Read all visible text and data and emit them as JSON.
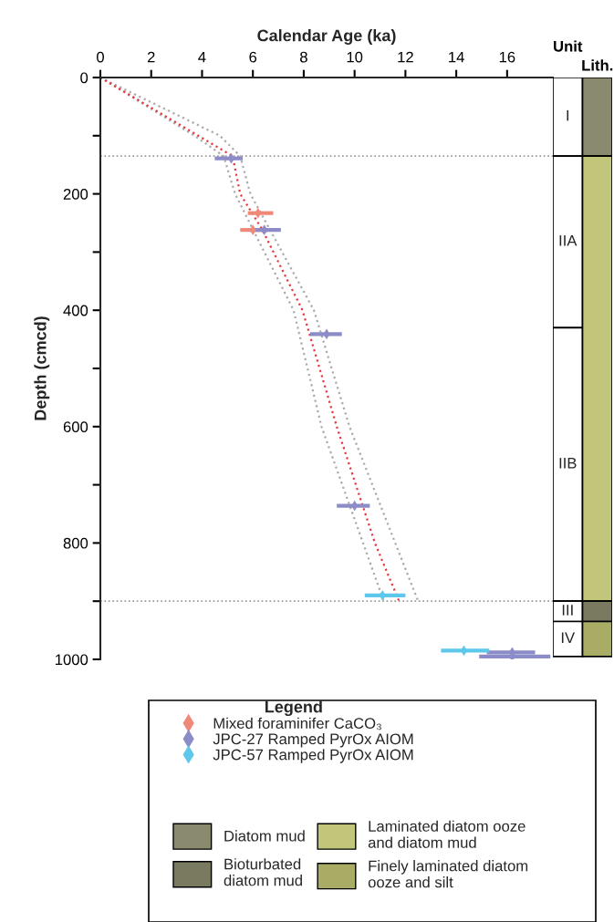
{
  "chart_data": [
    {
      "type": "scatter",
      "xlabel": "Calendar Age (ka)",
      "ylabel": "Depth (cmcd)",
      "legend_title": "Legend",
      "legend": "bottom",
      "xlim": [
        0,
        17.8
      ],
      "xticks": [
        0,
        2,
        4,
        6,
        8,
        10,
        12,
        14,
        16
      ],
      "ylim": [
        1000,
        0
      ],
      "yticks": [
        0,
        {
          "value": 100,
          "label": null
        },
        200,
        {
          "value": 300,
          "label": null
        },
        400,
        {
          "value": 500,
          "label": null
        },
        600,
        {
          "value": 700,
          "label": null
        },
        800,
        {
          "value": 900,
          "label": null
        },
        1000
      ],
      "grid": false,
      "ref_lines": [
        {
          "axis": "y",
          "value": 135,
          "color": "#999999",
          "line_style": "dotted"
        },
        {
          "axis": "y",
          "value": 900,
          "color": "#999999",
          "line_style": "dotted"
        }
      ],
      "series": [
        {
          "type": "line",
          "color": "#aaaaaa",
          "line_style": "dotted",
          "marker": "none",
          "x": [
            0,
            3.7,
            4.85,
            5.3,
            7.6,
            8.7,
            11.15
          ],
          "values": [
            0,
            100,
            135,
            200,
            400,
            600,
            900
          ]
        },
        {
          "type": "line",
          "color": "#aaaaaa",
          "line_style": "dotted",
          "marker": "none",
          "x": [
            0,
            4.7,
            5.5,
            5.9,
            8.4,
            9.8,
            12.5
          ],
          "values": [
            0,
            100,
            135,
            200,
            400,
            600,
            900
          ]
        },
        {
          "type": "line",
          "color": "#e8383d",
          "line_style": "dotted",
          "marker": "none",
          "x": [
            0,
            5.2,
            5.5,
            6.35,
            7.95,
            9.3,
            10.8,
            11.75
          ],
          "values": [
            0,
            135,
            200,
            260,
            400,
            600,
            800,
            900
          ]
        },
        {
          "type": "scatter",
          "name": "Mixed foraminifer CaCO₃",
          "color": "#f08878",
          "marker": "diamond",
          "x": [
            6.2,
            6.0
          ],
          "values": [
            233,
            262
          ],
          "xerrors": [
            [
              5.8,
              6.8
            ],
            [
              5.5,
              6.6
            ]
          ]
        },
        {
          "type": "scatter",
          "name": "JPC-27 Ramped PyrOx AIOM",
          "color": "#8c8cc8",
          "marker": "diamond",
          "x": [
            5.15,
            6.45,
            8.9,
            10.0,
            16.2,
            16.2
          ],
          "values": [
            139,
            262,
            441,
            736,
            988,
            995
          ],
          "xerrors": [
            [
              4.5,
              5.6
            ],
            [
              5.9,
              7.1
            ],
            [
              8.25,
              9.5
            ],
            [
              9.3,
              10.6
            ],
            [
              15.2,
              17.1
            ],
            [
              14.9,
              17.7
            ]
          ]
        },
        {
          "type": "scatter",
          "name": "JPC-57 Ramped PyrOx AIOM",
          "color": "#5ec8ec",
          "marker": "diamond",
          "x": [
            11.1,
            14.3
          ],
          "values": [
            890,
            985
          ],
          "xerrors": [
            [
              10.4,
              12.0
            ],
            [
              13.4,
              15.3
            ]
          ]
        }
      ]
    },
    {
      "type": "bar",
      "stacked": true,
      "categories": [
        "Unit",
        "Lith."
      ],
      "ylim": [
        1000,
        0
      ],
      "tick_labels": "x",
      "legend": "bottom",
      "series": [
        {
          "name": "I",
          "color": "#ffffff",
          "values": [
            135,
            null
          ]
        },
        {
          "name": "IIA",
          "color": "#ffffff",
          "values": [
            295,
            null
          ]
        },
        {
          "name": "IIB",
          "color": "#ffffff",
          "values": [
            470,
            null
          ]
        },
        {
          "name": "III",
          "color": "#ffffff",
          "values": [
            35,
            null
          ]
        },
        {
          "name": "IV",
          "color": "#ffffff",
          "values": [
            60,
            null
          ]
        },
        {
          "name": "Diatom mud",
          "color": "#8a8a6e",
          "values": [
            null,
            135
          ]
        },
        {
          "name": "Laminated diatom ooze\nand diatom mud",
          "color": "#c2c67a",
          "values": [
            null,
            765
          ]
        },
        {
          "name": "Bioturbated\ndiatom mud",
          "color": "#7a7a60",
          "values": [
            null,
            35
          ]
        },
        {
          "name": "Finely laminated diatom\nooze and silt",
          "color": "#a8ac64",
          "values": [
            null,
            60
          ]
        }
      ]
    }
  ]
}
